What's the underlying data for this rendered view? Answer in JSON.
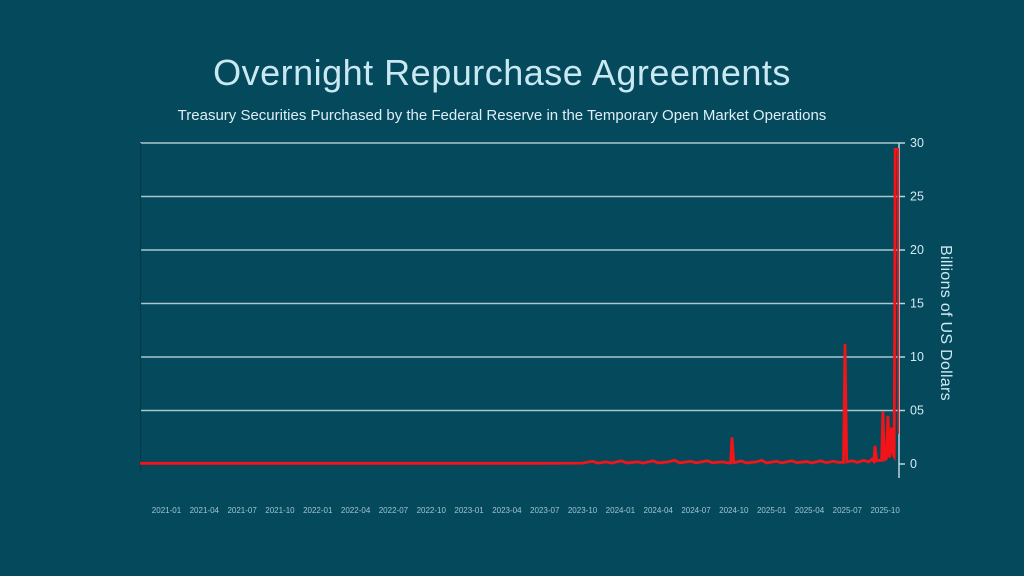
{
  "colors": {
    "background": "#05495c",
    "line": "#f21418",
    "grid": "#bdd4db",
    "right_axis": "#bdd4db",
    "left_axis": "#043b4b",
    "title_text": "#c9e8f2",
    "subtitle_text": "#ddeff6",
    "y_tick_text": "#d3eaf1",
    "x_tick_text": "#9fc6d2"
  },
  "chart_data": {
    "type": "line",
    "title": "Overnight Repurchase Agreements",
    "subtitle": "Treasury Securities Purchased by the Federal Reserve in the Temporary Open Market Operations",
    "ylabel": "Billions of US Dollars",
    "unit": "billions of US dollars",
    "ylim": [
      0,
      30
    ],
    "grid": true,
    "grid_values": [
      5,
      10,
      15,
      20,
      25,
      30
    ],
    "y_ticks": [
      {
        "value": 30,
        "label": "30"
      },
      {
        "value": 25,
        "label": "25"
      },
      {
        "value": 20,
        "label": "20"
      },
      {
        "value": 15,
        "label": "15"
      },
      {
        "value": 10,
        "label": "10"
      },
      {
        "value": 5,
        "label": "05"
      },
      {
        "value": 0,
        "label": "0"
      }
    ],
    "x_month0_label": "2021-01",
    "x_domain_months": [
      -2.1,
      58.1
    ],
    "months_per_tick": 3,
    "x_tick_labels": [
      "2021-01",
      "2021-04",
      "2021-07",
      "2021-10",
      "2022-01",
      "2022-04",
      "2022-07",
      "2022-10",
      "2023-01",
      "2023-04",
      "2023-07",
      "2023-10",
      "2024-01",
      "2024-04",
      "2024-07",
      "2024-10",
      "2025-01",
      "2025-04",
      "2025-07",
      "2025-10"
    ],
    "notable_spikes": [
      {
        "date": "2024-10",
        "value": 2.5
      },
      {
        "date": "2025-07",
        "value": 11.2
      },
      {
        "date": "2025-09",
        "value": 1.7
      },
      {
        "date": "2025-09",
        "value": 4.9
      },
      {
        "date": "2025-10",
        "value": 4.5
      },
      {
        "date": "2025-10",
        "value": 3.4
      },
      {
        "date": "2025-10",
        "value": 29.4
      }
    ],
    "points": [
      [
        -2.1,
        0.07
      ],
      [
        6,
        0.07
      ],
      [
        14,
        0.07
      ],
      [
        22,
        0.07
      ],
      [
        30,
        0.07
      ],
      [
        33,
        0.08
      ],
      [
        33.8,
        0.25
      ],
      [
        34.2,
        0.08
      ],
      [
        34.9,
        0.2
      ],
      [
        35.3,
        0.08
      ],
      [
        36.1,
        0.3
      ],
      [
        36.5,
        0.1
      ],
      [
        37.4,
        0.2
      ],
      [
        37.8,
        0.08
      ],
      [
        38.6,
        0.3
      ],
      [
        39.0,
        0.1
      ],
      [
        39.8,
        0.2
      ],
      [
        40.3,
        0.35
      ],
      [
        40.7,
        0.1
      ],
      [
        41.6,
        0.25
      ],
      [
        42.0,
        0.1
      ],
      [
        42.9,
        0.3
      ],
      [
        43.3,
        0.12
      ],
      [
        44.1,
        0.2
      ],
      [
        44.5,
        0.1
      ],
      [
        44.75,
        0.1
      ],
      [
        44.85,
        2.5
      ],
      [
        45.0,
        0.12
      ],
      [
        45.6,
        0.28
      ],
      [
        46.0,
        0.1
      ],
      [
        46.8,
        0.2
      ],
      [
        47.2,
        0.35
      ],
      [
        47.6,
        0.1
      ],
      [
        48.4,
        0.25
      ],
      [
        48.8,
        0.1
      ],
      [
        49.6,
        0.3
      ],
      [
        50.0,
        0.12
      ],
      [
        50.8,
        0.22
      ],
      [
        51.2,
        0.1
      ],
      [
        51.9,
        0.3
      ],
      [
        52.3,
        0.12
      ],
      [
        52.9,
        0.25
      ],
      [
        53.3,
        0.15
      ],
      [
        53.7,
        0.15
      ],
      [
        53.82,
        11.2
      ],
      [
        53.95,
        0.2
      ],
      [
        54.4,
        0.3
      ],
      [
        54.8,
        0.15
      ],
      [
        55.3,
        0.35
      ],
      [
        55.7,
        0.2
      ],
      [
        55.95,
        0.45
      ],
      [
        56.1,
        0.25
      ],
      [
        56.2,
        1.7
      ],
      [
        56.33,
        0.3
      ],
      [
        56.55,
        0.35
      ],
      [
        56.72,
        0.35
      ],
      [
        56.82,
        4.9
      ],
      [
        56.95,
        0.4
      ],
      [
        57.1,
        0.5
      ],
      [
        57.22,
        4.5
      ],
      [
        57.35,
        0.6
      ],
      [
        57.5,
        3.4
      ],
      [
        57.62,
        0.9
      ],
      [
        57.72,
        0.7
      ],
      [
        57.8,
        29.4
      ],
      [
        58.05,
        29.4
      ],
      [
        58.1,
        2.8
      ]
    ]
  }
}
